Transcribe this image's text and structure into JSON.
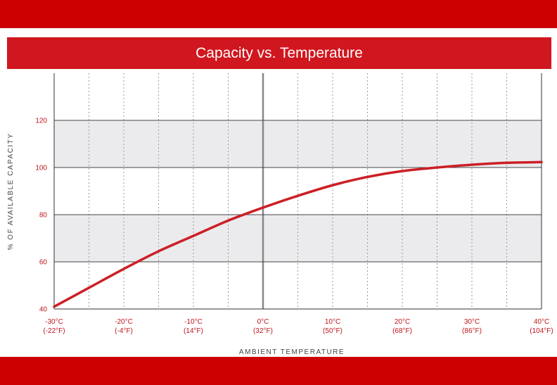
{
  "chart_data": {
    "type": "line",
    "title": "Capacity vs. Temperature",
    "xlabel": "AMBIENT TEMPERATURE",
    "ylabel": "% OF AVAILABLE CAPACITY",
    "xlim": [
      -30,
      40
    ],
    "ylim": [
      40,
      140
    ],
    "x_ticks": [
      {
        "value": -30,
        "label": "-30°C",
        "sublabel": "(-22°F)"
      },
      {
        "value": -20,
        "label": "-20°C",
        "sublabel": "(-4°F)"
      },
      {
        "value": -10,
        "label": "-10°C",
        "sublabel": "(14°F)"
      },
      {
        "value": 0,
        "label": "0°C",
        "sublabel": "(32°F)"
      },
      {
        "value": 10,
        "label": "10°C",
        "sublabel": "(50°F)"
      },
      {
        "value": 20,
        "label": "20°C",
        "sublabel": "(68°F)"
      },
      {
        "value": 30,
        "label": "30°C",
        "sublabel": "(86°F)"
      },
      {
        "value": 40,
        "label": "40°C",
        "sublabel": "(104°F)"
      }
    ],
    "y_ticks": [
      40,
      60,
      80,
      100,
      120
    ],
    "shaded_bands": [
      [
        60,
        80
      ],
      [
        100,
        120
      ]
    ],
    "series": [
      {
        "color": "#cc1f26",
        "x": [
          -30,
          -25,
          -20,
          -15,
          -10,
          -5,
          0,
          5,
          10,
          15,
          20,
          25,
          30,
          35,
          40
        ],
        "values": [
          41,
          49,
          57,
          64.5,
          71,
          77.5,
          83,
          88,
          92.5,
          96,
          98.5,
          100,
          101.2,
          102,
          102.3
        ]
      }
    ]
  }
}
